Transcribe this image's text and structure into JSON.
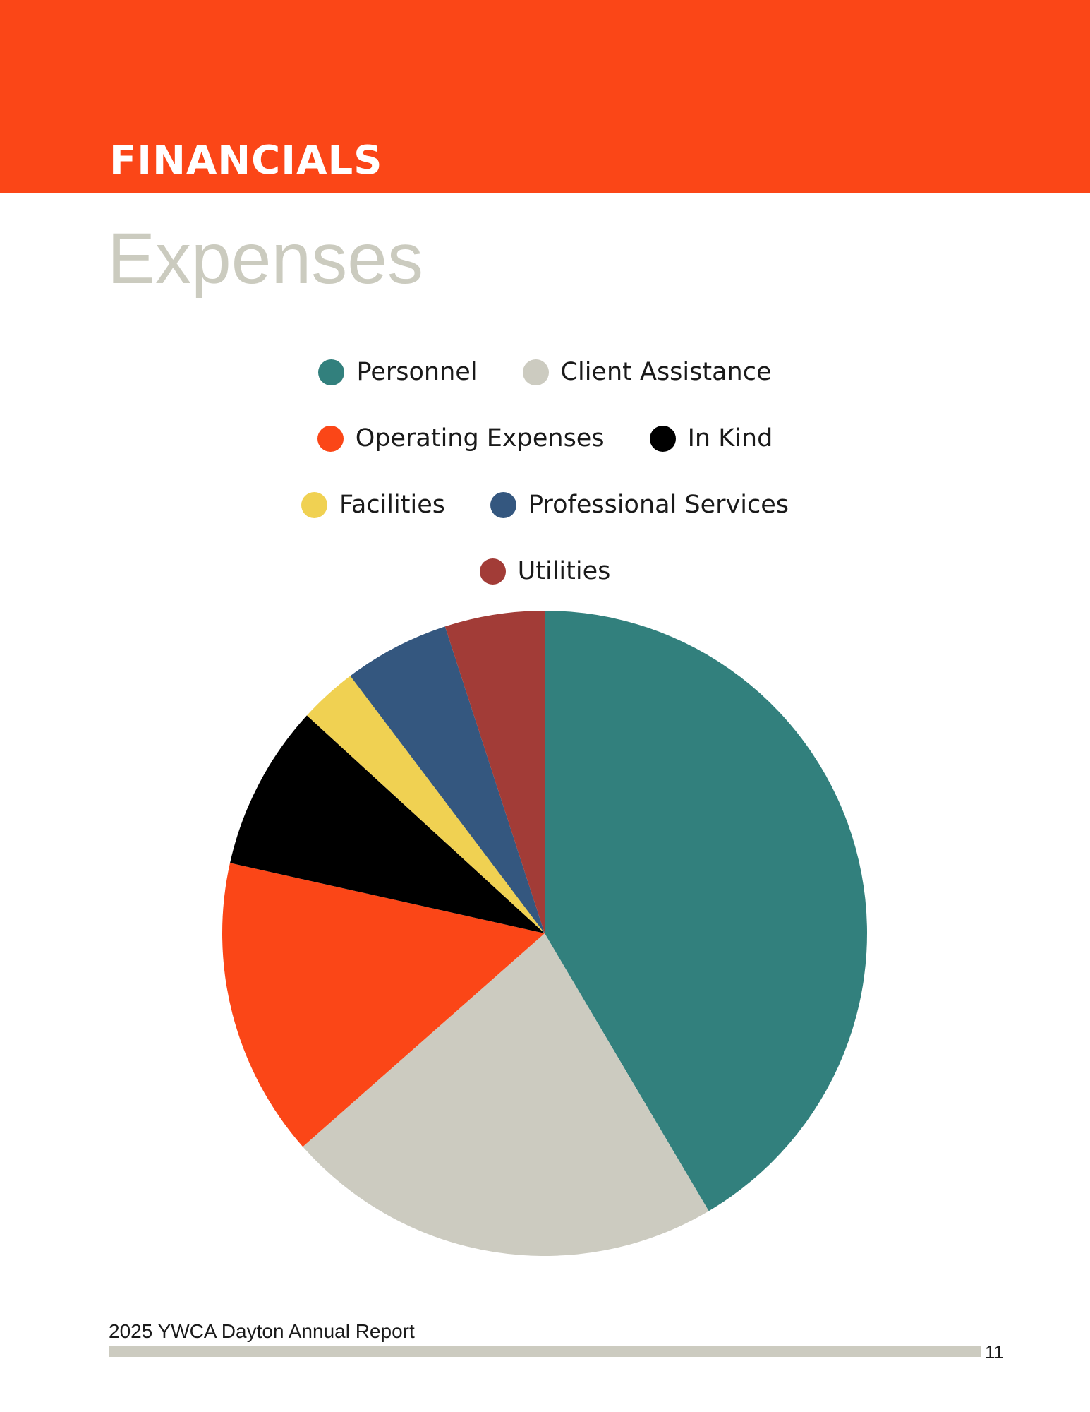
{
  "header": {
    "section_title": "FINANCIALS",
    "band_color": "#fb4617"
  },
  "page_title": "Expenses",
  "chart_data": {
    "type": "pie",
    "title": "",
    "legend_position": "top",
    "series": [
      {
        "name": "Expenses",
        "slices": [
          {
            "label": "Personnel",
            "value": 41.5,
            "color": "#32807d"
          },
          {
            "label": "Client Assistance",
            "value": 22.0,
            "color": "#cccbc0"
          },
          {
            "label": "Operating Expenses",
            "value": 15.0,
            "color": "#fb4617"
          },
          {
            "label": "In Kind",
            "value": 8.3,
            "color": "#000000"
          },
          {
            "label": "Facilities",
            "value": 2.9,
            "color": "#f0d152"
          },
          {
            "label": "Professional Services",
            "value": 5.3,
            "color": "#34577f"
          },
          {
            "label": "Utilities",
            "value": 5.0,
            "color": "#a23c37"
          }
        ]
      }
    ]
  },
  "legend_rows": [
    [
      0,
      1
    ],
    [
      2,
      3
    ],
    [
      4,
      5
    ],
    [
      6
    ]
  ],
  "footer": {
    "report_title": "2025 YWCA Dayton Annual Report",
    "page_number": "11",
    "rule_color": "#cccbc0"
  }
}
